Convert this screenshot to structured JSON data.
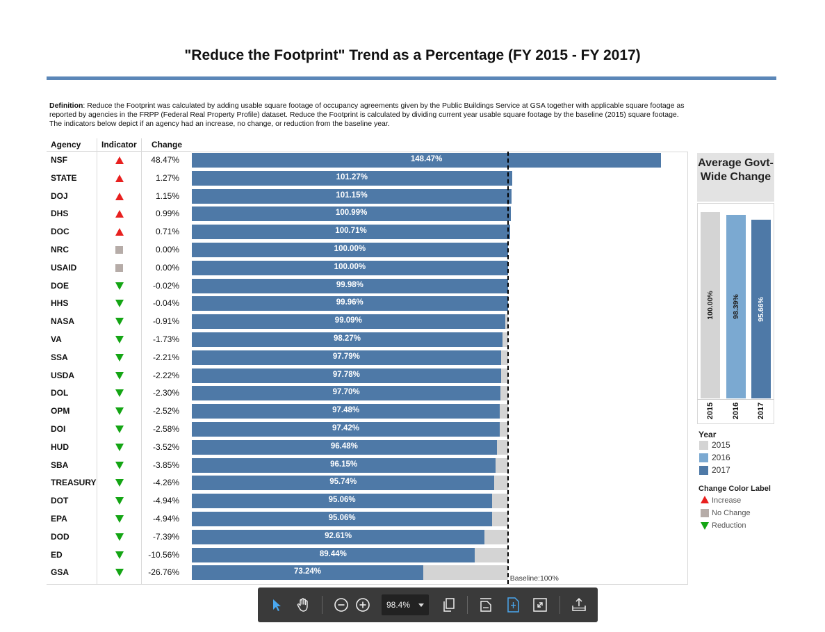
{
  "title": "\"Reduce the Footprint\" Trend as a Percentage (FY 2015 - FY 2017)",
  "definition": {
    "label": "Definition",
    "text": ": Reduce the Footprint was calculated by adding usable square footage of occupancy agreements given by the Public Buildings Service at GSA together with applicable square footage as reported by agencies in the FRPP (Federal Real Property Profile) dataset. Reduce the Footprint is calculated by dividing current year usable square footage by the baseline (2015) square footage. The indicators below depict if an agency had an increase, no change, or reduction from the baseline year."
  },
  "headers": {
    "agency": "Agency",
    "indicator": "Indicator",
    "change": "Change"
  },
  "colors": {
    "bar": "#4e79a7",
    "baseline_bar": "#d4d4d4",
    "increase": "#e8201f",
    "no_change": "#b6aca8",
    "reduction": "#14a514",
    "y2015": "#d4d4d4",
    "y2016": "#7ba9d1",
    "y2017": "#4e79a7"
  },
  "chart_data": [
    {
      "type": "bar",
      "orientation": "horizontal",
      "categories": [
        "NSF",
        "STATE",
        "DOJ",
        "DHS",
        "DOC",
        "NRC",
        "USAID",
        "DOE",
        "HHS",
        "NASA",
        "VA",
        "SSA",
        "USDA",
        "DOL",
        "OPM",
        "DOI",
        "HUD",
        "SBA",
        "TREASURY",
        "DOT",
        "EPA",
        "DOD",
        "ED",
        "GSA"
      ],
      "values": [
        148.47,
        101.27,
        101.15,
        100.99,
        100.71,
        100.0,
        100.0,
        99.98,
        99.96,
        99.09,
        98.27,
        97.79,
        97.78,
        97.7,
        97.48,
        97.42,
        96.48,
        96.15,
        95.74,
        95.06,
        95.06,
        92.61,
        89.44,
        73.24
      ],
      "value_labels": [
        "148.47%",
        "101.27%",
        "101.15%",
        "100.99%",
        "100.71%",
        "100.00%",
        "100.00%",
        "99.98%",
        "99.96%",
        "99.09%",
        "98.27%",
        "97.79%",
        "97.78%",
        "97.70%",
        "97.48%",
        "97.42%",
        "96.48%",
        "96.15%",
        "95.74%",
        "95.06%",
        "95.06%",
        "92.61%",
        "89.44%",
        "73.24%"
      ],
      "changes": [
        "48.47%",
        "1.27%",
        "1.15%",
        "0.99%",
        "0.71%",
        "0.00%",
        "0.00%",
        "-0.02%",
        "-0.04%",
        "-0.91%",
        "-1.73%",
        "-2.21%",
        "-2.22%",
        "-2.30%",
        "-2.52%",
        "-2.58%",
        "-3.52%",
        "-3.85%",
        "-4.26%",
        "-4.94%",
        "-4.94%",
        "-7.39%",
        "-10.56%",
        "-26.76%"
      ],
      "indicators": [
        "increase",
        "increase",
        "increase",
        "increase",
        "increase",
        "no_change",
        "no_change",
        "reduction",
        "reduction",
        "reduction",
        "reduction",
        "reduction",
        "reduction",
        "reduction",
        "reduction",
        "reduction",
        "reduction",
        "reduction",
        "reduction",
        "reduction",
        "reduction",
        "reduction",
        "reduction",
        "reduction"
      ],
      "baseline": 100,
      "baseline_label": "Baseline:100%",
      "xlim": [
        0,
        157
      ]
    },
    {
      "type": "bar",
      "title": "Average Govt-Wide Change",
      "categories": [
        "2015",
        "2016",
        "2017"
      ],
      "values": [
        100.0,
        98.39,
        95.66
      ],
      "value_labels": [
        "100.00%",
        "98.39%",
        "95.66%"
      ],
      "ylim": [
        0,
        102.5
      ]
    }
  ],
  "legend_year": {
    "title": "Year",
    "items": [
      "2015",
      "2016",
      "2017"
    ]
  },
  "legend_change": {
    "title": "Change Color Label",
    "items": [
      "Increase",
      "No Change",
      "Reduction"
    ]
  },
  "toolbar": {
    "zoom": "98.4%"
  }
}
